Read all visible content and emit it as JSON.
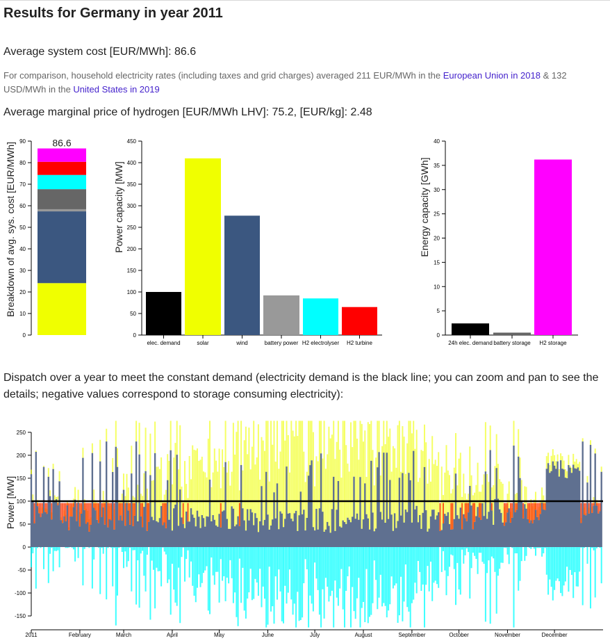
{
  "page": {
    "title": "Results for Germany in year 2011",
    "cost_label": "Average system cost [EUR/MWh]: 86.6",
    "note_text1": "For comparison, household electricity rates (including taxes and grid charges) averaged 211 EUR/MWh in the ",
    "link_eu": "European Union in 2018",
    "note_text2": " & 132 USD/MWh in the ",
    "link_us": "United States in 2019",
    "h2_label": "Average marginal price of hydrogen [EUR/MWh LHV]: 75.2, [EUR/kg]: 2.48",
    "dispatch_label": "Dispatch over a year to meet the constant demand (electricity demand is the black line; you can zoom and pan to see the details; negative values correspond to storage consuming electricity):"
  },
  "chart_data": [
    {
      "type": "bar",
      "subtype": "stacked",
      "ylabel": "Breakdown of avg. sys. cost [EUR/MWh]",
      "ylim": [
        0,
        90
      ],
      "yticks": [
        0,
        10,
        20,
        30,
        40,
        50,
        60,
        70,
        80,
        90
      ],
      "total_label": "86.6",
      "segments": [
        {
          "value": 24.1,
          "color": "#f0ff00"
        },
        {
          "value": 33.3,
          "color": "#3b5780"
        },
        {
          "value": 1.0,
          "color": "#999999"
        },
        {
          "value": 9.3,
          "color": "#666666"
        },
        {
          "value": 6.6,
          "color": "#00ffff"
        },
        {
          "value": 6.1,
          "color": "#ff0000"
        },
        {
          "value": 6.2,
          "color": "#ff00ff"
        }
      ]
    },
    {
      "type": "bar",
      "ylabel": "Power capacity [MW]",
      "ylim": [
        0,
        450
      ],
      "yticks": [
        0,
        50,
        100,
        150,
        200,
        250,
        300,
        350,
        400,
        450
      ],
      "categories": [
        "elec. demand",
        "solar",
        "wind",
        "battery power",
        "H2 electrolyser",
        "H2 turbine"
      ],
      "values": [
        100,
        410,
        277,
        92,
        85,
        65
      ],
      "colors": [
        "#000000",
        "#f0ff00",
        "#3b5780",
        "#999999",
        "#00ffff",
        "#ff0000"
      ]
    },
    {
      "type": "bar",
      "ylabel": "Energy capacity [GWh]",
      "ylim": [
        0,
        40
      ],
      "yticks": [
        0,
        5,
        10,
        15,
        20,
        25,
        30,
        35,
        40
      ],
      "categories": [
        "24h elec. demand",
        "battery storage",
        "H2 storage"
      ],
      "values": [
        2.4,
        0.5,
        36.2
      ],
      "colors": [
        "#000000",
        "#666666",
        "#ff00ff"
      ]
    },
    {
      "type": "area",
      "subtype": "stacked time series",
      "ylabel": "Power [MW]",
      "ylim": [
        -175,
        275
      ],
      "yticks": [
        -150,
        -100,
        -50,
        0,
        50,
        100,
        150,
        200,
        250
      ],
      "xticks": [
        "2011",
        "February",
        "March",
        "April",
        "May",
        "June",
        "July",
        "August",
        "September",
        "October",
        "November",
        "December"
      ],
      "demand_level": 100,
      "demand_color": "#000000",
      "colors": {
        "wind": "#5f7090",
        "solar": "#f0ff00",
        "battery": "#ffd05a",
        "h2_turbine": "#ff3300",
        "electrolyser": "#00ffff",
        "battery_charge": "#aaaaaa"
      }
    }
  ]
}
